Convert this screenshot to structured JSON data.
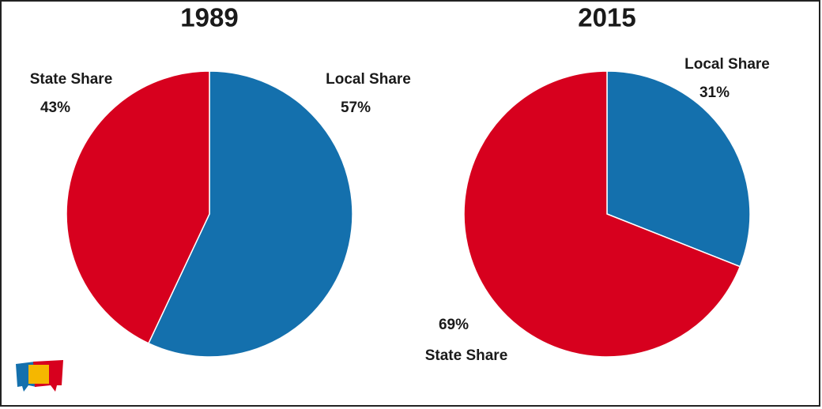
{
  "chart_data": [
    {
      "type": "pie",
      "title": "1989",
      "categories": [
        "Local Share",
        "State Share"
      ],
      "values": [
        57,
        43
      ],
      "value_labels": [
        "57%",
        "43%"
      ],
      "colors": [
        "#1470ad",
        "#d7001e"
      ]
    },
    {
      "type": "pie",
      "title": "2015",
      "categories": [
        "Local Share",
        "State Share"
      ],
      "values": [
        31,
        69
      ],
      "value_labels": [
        "31%",
        "69%"
      ],
      "colors": [
        "#1470ad",
        "#d7001e"
      ]
    }
  ]
}
